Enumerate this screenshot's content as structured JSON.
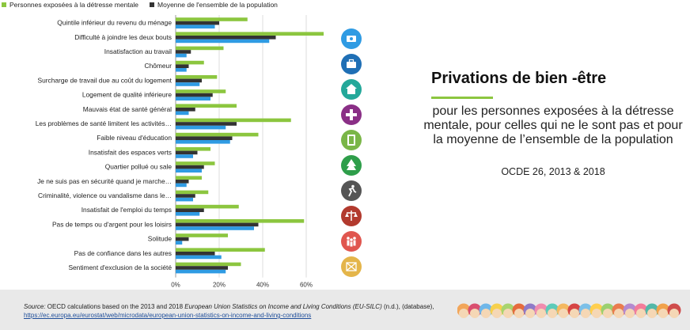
{
  "legend": {
    "series1": "Personnes exposées à la détresse mentale",
    "series2": "Moyenne de l'ensemble de la population",
    "color1": "#8cc63f",
    "color2": "#333333"
  },
  "panel": {
    "title": "Privations de bien -être",
    "subtitle": "pour les personnes exposées à la détresse mentale, pour celles qui ne le sont pas et pour la moyenne de l’ensemble de la population",
    "edition": "OCDE 26, 2013 & 2018"
  },
  "source": {
    "label": "Source:",
    "text1": " OECD calculations based on the 2013 and 2018 ",
    "italic": "European Union Statistics on Income and Living Conditions (EU-SILC)",
    "text2": " (n.d.), (database), ",
    "link": "https://ec.europa.eu/eurostat/web/microdata/european-union-statistics-on-income-and-living-conditions"
  },
  "icons": [
    "money-icon",
    "briefcase-icon",
    "house-icon",
    "health-cross-icon",
    "book-icon",
    "tree-icon",
    "runner-icon",
    "scales-icon",
    "people-icon",
    "envelope-icon"
  ],
  "colors": {
    "green": "#8cc63f",
    "dark": "#333333",
    "blue": "#2f9be3"
  },
  "chart_data": {
    "type": "bar",
    "orientation": "horizontal",
    "categories": [
      "Quintile inférieur du revenu du ménage",
      "Difficulté à joindre les deux bouts",
      "Insatisfaction au travail",
      "Chômeur",
      "Surcharge de travail due au coût du logement",
      "Logement de qualité inférieure",
      "Mauvais état de santé général",
      "Les problèmes de santé limitent les activités…",
      "Faible niveau d'éducation",
      "Insatisfait des espaces verts",
      "Quartier pollué ou sale",
      "Je ne suis pas en sécurité quand je marche…",
      "Criminalité, violence ou vandalisme dans le…",
      "Insatisfait de l'emploi du temps",
      "Pas de temps ou d'argent pour les loisirs",
      "Solitude",
      "Pas de confiance dans les autres",
      "Sentiment d'exclusion de la société"
    ],
    "series": [
      {
        "name": "Personnes exposées à la détresse mentale",
        "color": "#8cc63f",
        "values": [
          33,
          68,
          22,
          13,
          19,
          23,
          28,
          53,
          38,
          16,
          18,
          12,
          15,
          29,
          59,
          24,
          41,
          30
        ]
      },
      {
        "name": "Moyenne de l'ensemble de la population",
        "color": "#333333",
        "values": [
          20,
          46,
          7,
          6,
          12,
          17,
          9,
          28,
          26,
          10,
          13,
          6,
          9,
          13,
          38,
          6,
          18,
          24
        ]
      },
      {
        "color": "#2f9be3",
        "values": [
          18,
          43,
          5,
          5,
          11,
          16,
          6,
          23,
          25,
          8,
          12,
          5,
          8,
          11,
          36,
          3,
          21,
          23
        ]
      }
    ],
    "xticks": [
      "0%",
      "20%",
      "40%",
      "60%"
    ],
    "xlim": [
      0,
      70
    ],
    "grid": true,
    "legend_position": "top-left"
  }
}
